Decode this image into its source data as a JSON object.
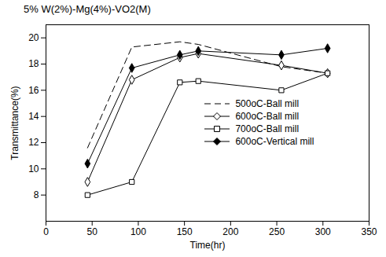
{
  "chart_data": {
    "type": "line",
    "title": "5% W(2%)-Mg(4%)-VO2(M)",
    "x_label": "Time(hr)",
    "y_label": "Transmittance(%)",
    "x": [
      45,
      93,
      145,
      165,
      255,
      305
    ],
    "series": [
      {
        "name": "500oC-Ball mill",
        "color": "#000000",
        "marker": "none",
        "line_style": "dashed",
        "values": [
          11.6,
          19.3,
          19.7,
          19.5,
          17.8,
          17.3
        ]
      },
      {
        "name": "600oC-Ball mill",
        "color": "#000000",
        "marker": "diamond-open",
        "line_style": "solid",
        "values": [
          9.0,
          16.8,
          18.5,
          18.8,
          17.9,
          17.3
        ]
      },
      {
        "name": "700oC-Ball mill",
        "color": "#000000",
        "marker": "square-open",
        "line_style": "solid",
        "values": [
          8.0,
          9.0,
          16.6,
          16.7,
          16.0,
          17.3
        ]
      },
      {
        "name": "600oC-Vertical mill",
        "color": "#000000",
        "marker": "diamond-filled",
        "line_style": "solid",
        "values": [
          10.4,
          17.7,
          18.7,
          19.0,
          18.7,
          19.2
        ]
      }
    ],
    "xlim": [
      0,
      350
    ],
    "xticks": [
      0,
      50,
      100,
      150,
      200,
      250,
      300,
      350
    ],
    "ylim": [
      6,
      21
    ],
    "yticks": [
      8,
      10,
      12,
      14,
      16,
      18,
      20
    ],
    "grid": false,
    "legend": "lower right"
  }
}
